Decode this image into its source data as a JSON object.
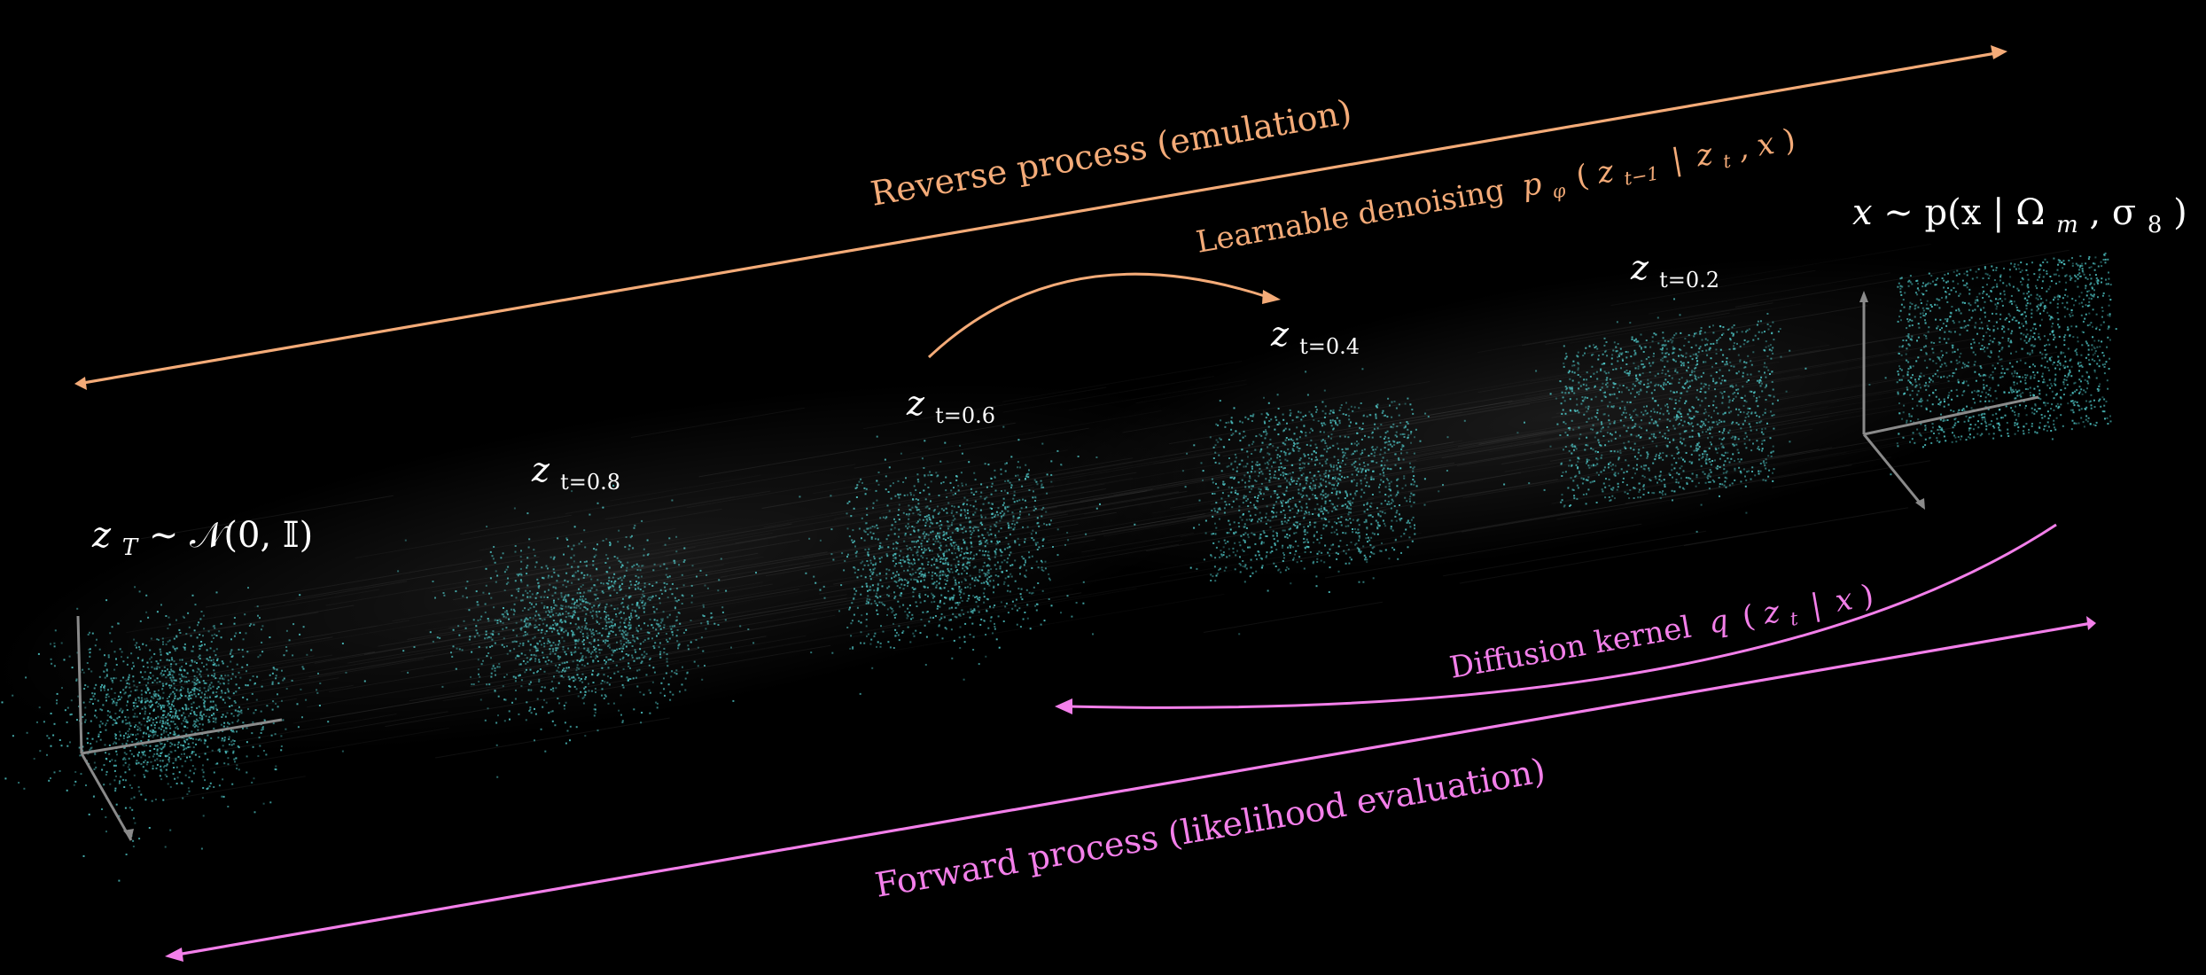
{
  "colors": {
    "background": "#000000",
    "reverse": "#f4ab78",
    "forward": "#f37fea",
    "particles": "#4fc6c6",
    "labels": "#ffffff",
    "streaks": "#9a9a9a",
    "axes": "#8a8a8a"
  },
  "reverse_process": {
    "title": "Reverse process (emulation)",
    "subtitle_text": "Learnable denoising",
    "subtitle_math": {
      "p": "p",
      "phi": "φ",
      "z1": "z",
      "sub1": "t−1",
      "bar": "|",
      "z2": "z",
      "sub2": "t",
      "comma_x": ", x"
    }
  },
  "forward_process": {
    "title": "Forward process (likelihood evaluation)",
    "subtitle_text": "Diffusion kernel",
    "subtitle_math": {
      "q": "q",
      "z": "z",
      "sub": "t",
      "bar": "|",
      "x": "x"
    }
  },
  "endpoints": {
    "prior": {
      "z": "z",
      "sub": "T",
      "rest": " ∼ 𝒩(0, 𝕀)"
    },
    "data": {
      "x": "x",
      "rest1": " ∼ p(x | Ω",
      "m": "m",
      "rest2": ", σ",
      "eight": "8",
      "close": ")"
    }
  },
  "stages": [
    {
      "label": "z",
      "sub": "t=0.8"
    },
    {
      "label": "z",
      "sub": "t=0.6"
    },
    {
      "label": "z",
      "sub": "t=0.4"
    },
    {
      "label": "z",
      "sub": "t=0.2"
    }
  ],
  "icons": {
    "arrowheads": "triangle-arrowhead-icon",
    "axes": "3d-axis-icon"
  }
}
